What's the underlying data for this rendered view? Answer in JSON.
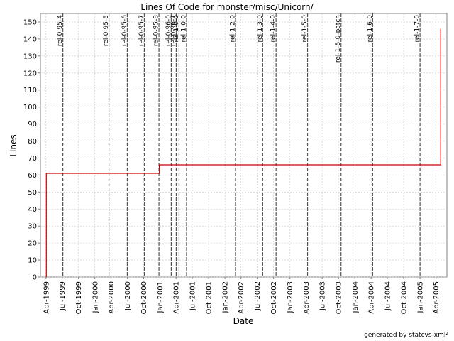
{
  "chart_data": {
    "type": "line",
    "title": "Lines Of Code for monster/misc/Unicorn/",
    "xlabel": "Date",
    "ylabel": "Lines",
    "credit": "generated by statcvs-xml²",
    "xlim": [
      "1999-03-01",
      "2005-06-01"
    ],
    "ylim": [
      0,
      155
    ],
    "y_ticks": [
      0,
      10,
      20,
      30,
      40,
      50,
      60,
      70,
      80,
      90,
      100,
      110,
      120,
      130,
      140,
      150
    ],
    "x_ticks": [
      {
        "date": "1999-04-01",
        "label": "Apr-1999"
      },
      {
        "date": "1999-07-01",
        "label": "Jul-1999"
      },
      {
        "date": "1999-10-01",
        "label": "Oct-1999"
      },
      {
        "date": "2000-01-01",
        "label": "Jan-2000"
      },
      {
        "date": "2000-04-01",
        "label": "Apr-2000"
      },
      {
        "date": "2000-07-01",
        "label": "Jul-2000"
      },
      {
        "date": "2000-10-01",
        "label": "Oct-2000"
      },
      {
        "date": "2001-01-01",
        "label": "Jan-2001"
      },
      {
        "date": "2001-04-01",
        "label": "Apr-2001"
      },
      {
        "date": "2001-07-01",
        "label": "Jul-2001"
      },
      {
        "date": "2001-10-01",
        "label": "Oct-2001"
      },
      {
        "date": "2002-01-01",
        "label": "Jan-2002"
      },
      {
        "date": "2002-04-01",
        "label": "Apr-2002"
      },
      {
        "date": "2002-07-01",
        "label": "Jul-2002"
      },
      {
        "date": "2002-10-01",
        "label": "Oct-2002"
      },
      {
        "date": "2003-01-01",
        "label": "Jan-2003"
      },
      {
        "date": "2003-04-01",
        "label": "Apr-2003"
      },
      {
        "date": "2003-07-01",
        "label": "Jul-2003"
      },
      {
        "date": "2003-10-01",
        "label": "Oct-2003"
      },
      {
        "date": "2004-01-01",
        "label": "Jan-2004"
      },
      {
        "date": "2004-04-01",
        "label": "Apr-2004"
      },
      {
        "date": "2004-07-01",
        "label": "Jul-2004"
      },
      {
        "date": "2004-10-01",
        "label": "Oct-2004"
      },
      {
        "date": "2005-01-01",
        "label": "Jan-2005"
      },
      {
        "date": "2005-04-01",
        "label": "Apr-2005"
      }
    ],
    "series": [
      {
        "color": "#cc0000",
        "step": true,
        "points": [
          {
            "x": "1999-04-01",
            "y": 0
          },
          {
            "x": "1999-04-03",
            "y": 61
          },
          {
            "x": "2000-12-26",
            "y": 61
          },
          {
            "x": "2000-12-28",
            "y": 66
          },
          {
            "x": "2005-04-25",
            "y": 66
          },
          {
            "x": "2005-04-27",
            "y": 146
          }
        ]
      }
    ],
    "markers": [
      {
        "date": "1999-07-05",
        "label": "rel-0-95-4"
      },
      {
        "date": "2000-03-20",
        "label": "rel-0-95-5"
      },
      {
        "date": "2000-07-01",
        "label": "rel-0-95-6"
      },
      {
        "date": "2000-10-05",
        "label": "rel-0-95-7"
      },
      {
        "date": "2000-12-26",
        "label": "rel-0-95-8"
      },
      {
        "date": "2001-03-05",
        "label": "rel-0-96-0"
      },
      {
        "date": "2001-04-02",
        "label": "rel-0-96-1"
      },
      {
        "date": "2001-04-18",
        "label": "rel-1-0-0"
      },
      {
        "date": "2001-05-30",
        "label": "rel-1-0-0"
      },
      {
        "date": "2002-03-01",
        "label": "rel-1-2-0"
      },
      {
        "date": "2002-08-01",
        "label": "rel-1-3-0"
      },
      {
        "date": "2002-10-15",
        "label": "rel-1-4-0"
      },
      {
        "date": "2003-04-10",
        "label": "rel-1-5-0"
      },
      {
        "date": "2003-10-15",
        "label": "rel-1-5-0-patch"
      },
      {
        "date": "2004-04-10",
        "label": "rel-1-6-0"
      },
      {
        "date": "2005-01-01",
        "label": "rel-1-7-0"
      }
    ],
    "grid": true,
    "legend": "none",
    "colors": {
      "line": "#cc0000",
      "grid": "#c8c8c8",
      "marker": "#555555",
      "axis": "#808080"
    }
  }
}
